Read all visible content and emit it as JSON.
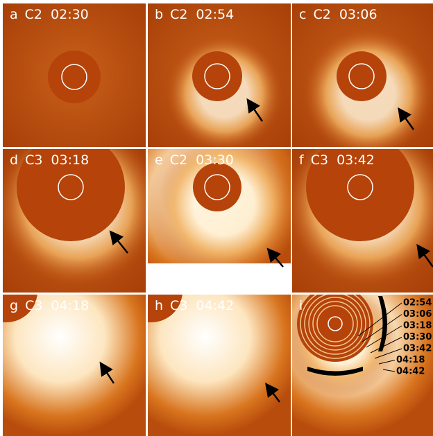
{
  "panels": [
    {
      "letter": "a",
      "instrument": "C2",
      "time": "02:30"
    },
    {
      "letter": "b",
      "instrument": "C2",
      "time": "02:54"
    },
    {
      "letter": "c",
      "instrument": "C2",
      "time": "03:06"
    },
    {
      "letter": "d",
      "instrument": "C3",
      "time": "03:18"
    },
    {
      "letter": "e",
      "instrument": "C2",
      "time": "03:30"
    },
    {
      "letter": "f",
      "instrument": "C3",
      "time": "03:42"
    },
    {
      "letter": "g",
      "instrument": "C3",
      "time": "04:18"
    },
    {
      "letter": "h",
      "instrument": "C3",
      "time": "04:42"
    },
    {
      "letter": "i"
    }
  ],
  "overlay_times": [
    "02:54",
    "03:06",
    "03:18",
    "03:30",
    "03:42",
    "04:18",
    "04:42"
  ]
}
